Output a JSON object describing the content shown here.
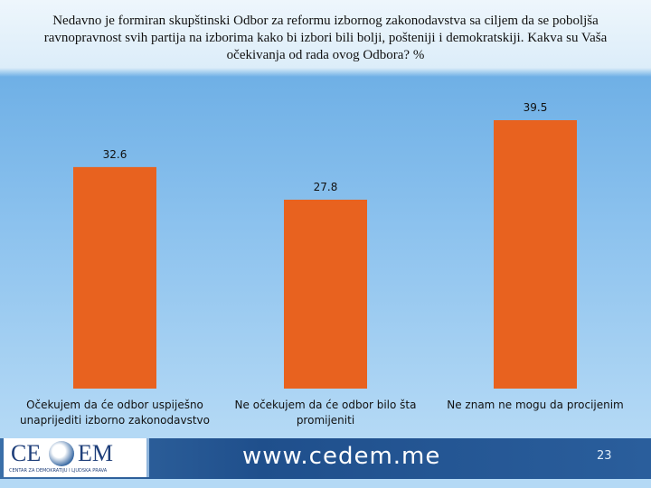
{
  "chart_data": {
    "type": "bar",
    "title": "Nedavno je formiran skupštinski Odbor za reformu izbornog zakonodavstva sa ciljem da se poboljša ravnopravnost svih partija na izborima kako bi izbori bili bolji, pošteniji i demokratskiji. Kakva su Vaša očekivanja od rada ovog Odbora? %",
    "categories": [
      "Očekujem da će odbor uspiješno unaprijediti izborno zakonodavstvo",
      "Ne očekujem da će odbor bilo šta promijeniti",
      "Ne znam ne mogu da procijenim"
    ],
    "values": [
      32.6,
      27.8,
      39.5
    ],
    "color": "#e8621f"
  },
  "footer": {
    "logo_left": "CE",
    "logo_right": "EM",
    "logo_subtitle": "CENTAR ZA DEMOKRATIJU I LJUDSKA PRAVA",
    "website": "www.cedem.me",
    "page_number": "23"
  }
}
